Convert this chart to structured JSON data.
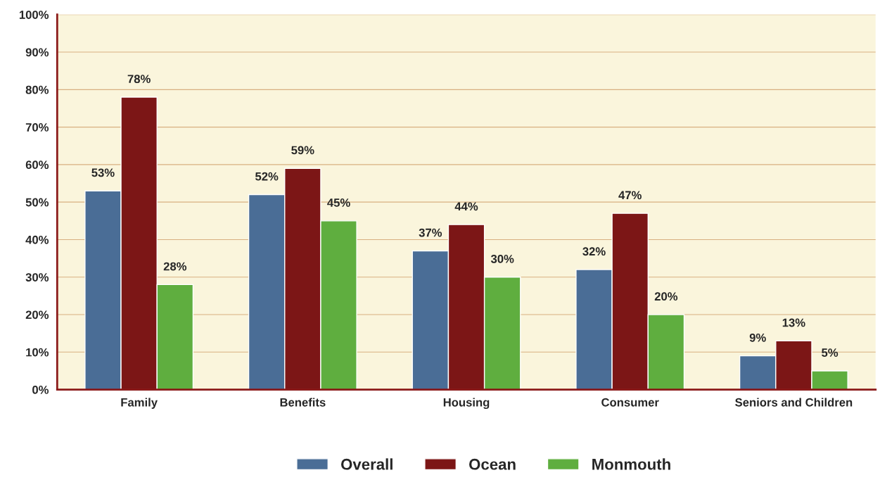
{
  "chart_data": {
    "type": "bar",
    "categories": [
      "Family",
      "Benefits",
      "Housing",
      "Consumer",
      "Seniors and Children"
    ],
    "series": [
      {
        "name": "Overall",
        "color": "#4a6d96",
        "values": [
          53,
          52,
          37,
          32,
          9
        ],
        "value_labels": [
          "53%",
          "52%",
          "37%",
          "32%",
          "9%"
        ]
      },
      {
        "name": "Ocean",
        "color": "#7c1616",
        "values": [
          78,
          59,
          44,
          47,
          13
        ],
        "value_labels": [
          "78%",
          "59%",
          "44%",
          "47%",
          "13%"
        ]
      },
      {
        "name": "Monmouth",
        "color": "#5fae3f",
        "values": [
          28,
          45,
          30,
          20,
          5
        ],
        "value_labels": [
          "28%",
          "45%",
          "30%",
          "20%",
          "5%"
        ]
      }
    ],
    "ylim": [
      0,
      100
    ],
    "yticks": [
      {
        "value": 0,
        "label": "0%"
      },
      {
        "value": 10,
        "label": "10%"
      },
      {
        "value": 20,
        "label": "20%"
      },
      {
        "value": 30,
        "label": "30%"
      },
      {
        "value": 40,
        "label": "40%"
      },
      {
        "value": 50,
        "label": "50%"
      },
      {
        "value": 60,
        "label": "60%"
      },
      {
        "value": 70,
        "label": "70%"
      },
      {
        "value": 80,
        "label": "80%"
      },
      {
        "value": 90,
        "label": "90%"
      },
      {
        "value": 100,
        "label": "100%"
      }
    ],
    "grid": "y",
    "legend": "bottom"
  }
}
